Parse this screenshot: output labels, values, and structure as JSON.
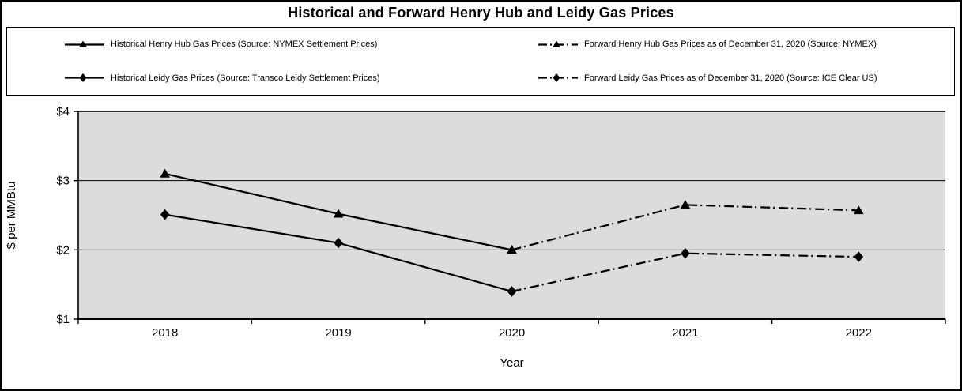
{
  "chart_data": {
    "type": "line",
    "title": "Historical and Forward Henry Hub and Leidy Gas Prices",
    "xlabel": "Year",
    "ylabel": "$ per MMBtu",
    "categories": [
      "2018",
      "2019",
      "2020",
      "2021",
      "2022"
    ],
    "ylim": [
      1,
      4
    ],
    "ytick_values": [
      1,
      2,
      3,
      4
    ],
    "ytick_labels": [
      "$1",
      "$2",
      "$3",
      "$4"
    ],
    "grid": true,
    "legend_position": "top",
    "plot_bg": "#dcdcdc",
    "line_color": "#000000",
    "series": [
      {
        "name": "Historical Henry Hub Gas Prices (Source: NYMEX Settlement Prices)",
        "marker": "triangle",
        "line_style": "solid",
        "x": [
          "2018",
          "2019",
          "2020"
        ],
        "values": [
          3.1,
          2.52,
          2.0
        ]
      },
      {
        "name": "Forward Henry Hub Gas Prices as of December 31, 2020 (Source: NYMEX)",
        "marker": "triangle",
        "line_style": "dash-dot",
        "x": [
          "2020",
          "2021",
          "2022"
        ],
        "values": [
          2.0,
          2.65,
          2.57
        ]
      },
      {
        "name": "Historical Leidy Gas Prices (Source: Transco Leidy Settlement Prices)",
        "marker": "diamond",
        "line_style": "solid",
        "x": [
          "2018",
          "2019",
          "2020"
        ],
        "values": [
          2.51,
          2.1,
          1.4
        ]
      },
      {
        "name": "Forward Leidy Gas Prices as of December 31, 2020 (Source: ICE Clear US)",
        "marker": "diamond",
        "line_style": "dash-dot",
        "x": [
          "2020",
          "2021",
          "2022"
        ],
        "values": [
          1.4,
          1.95,
          1.9
        ]
      }
    ]
  }
}
